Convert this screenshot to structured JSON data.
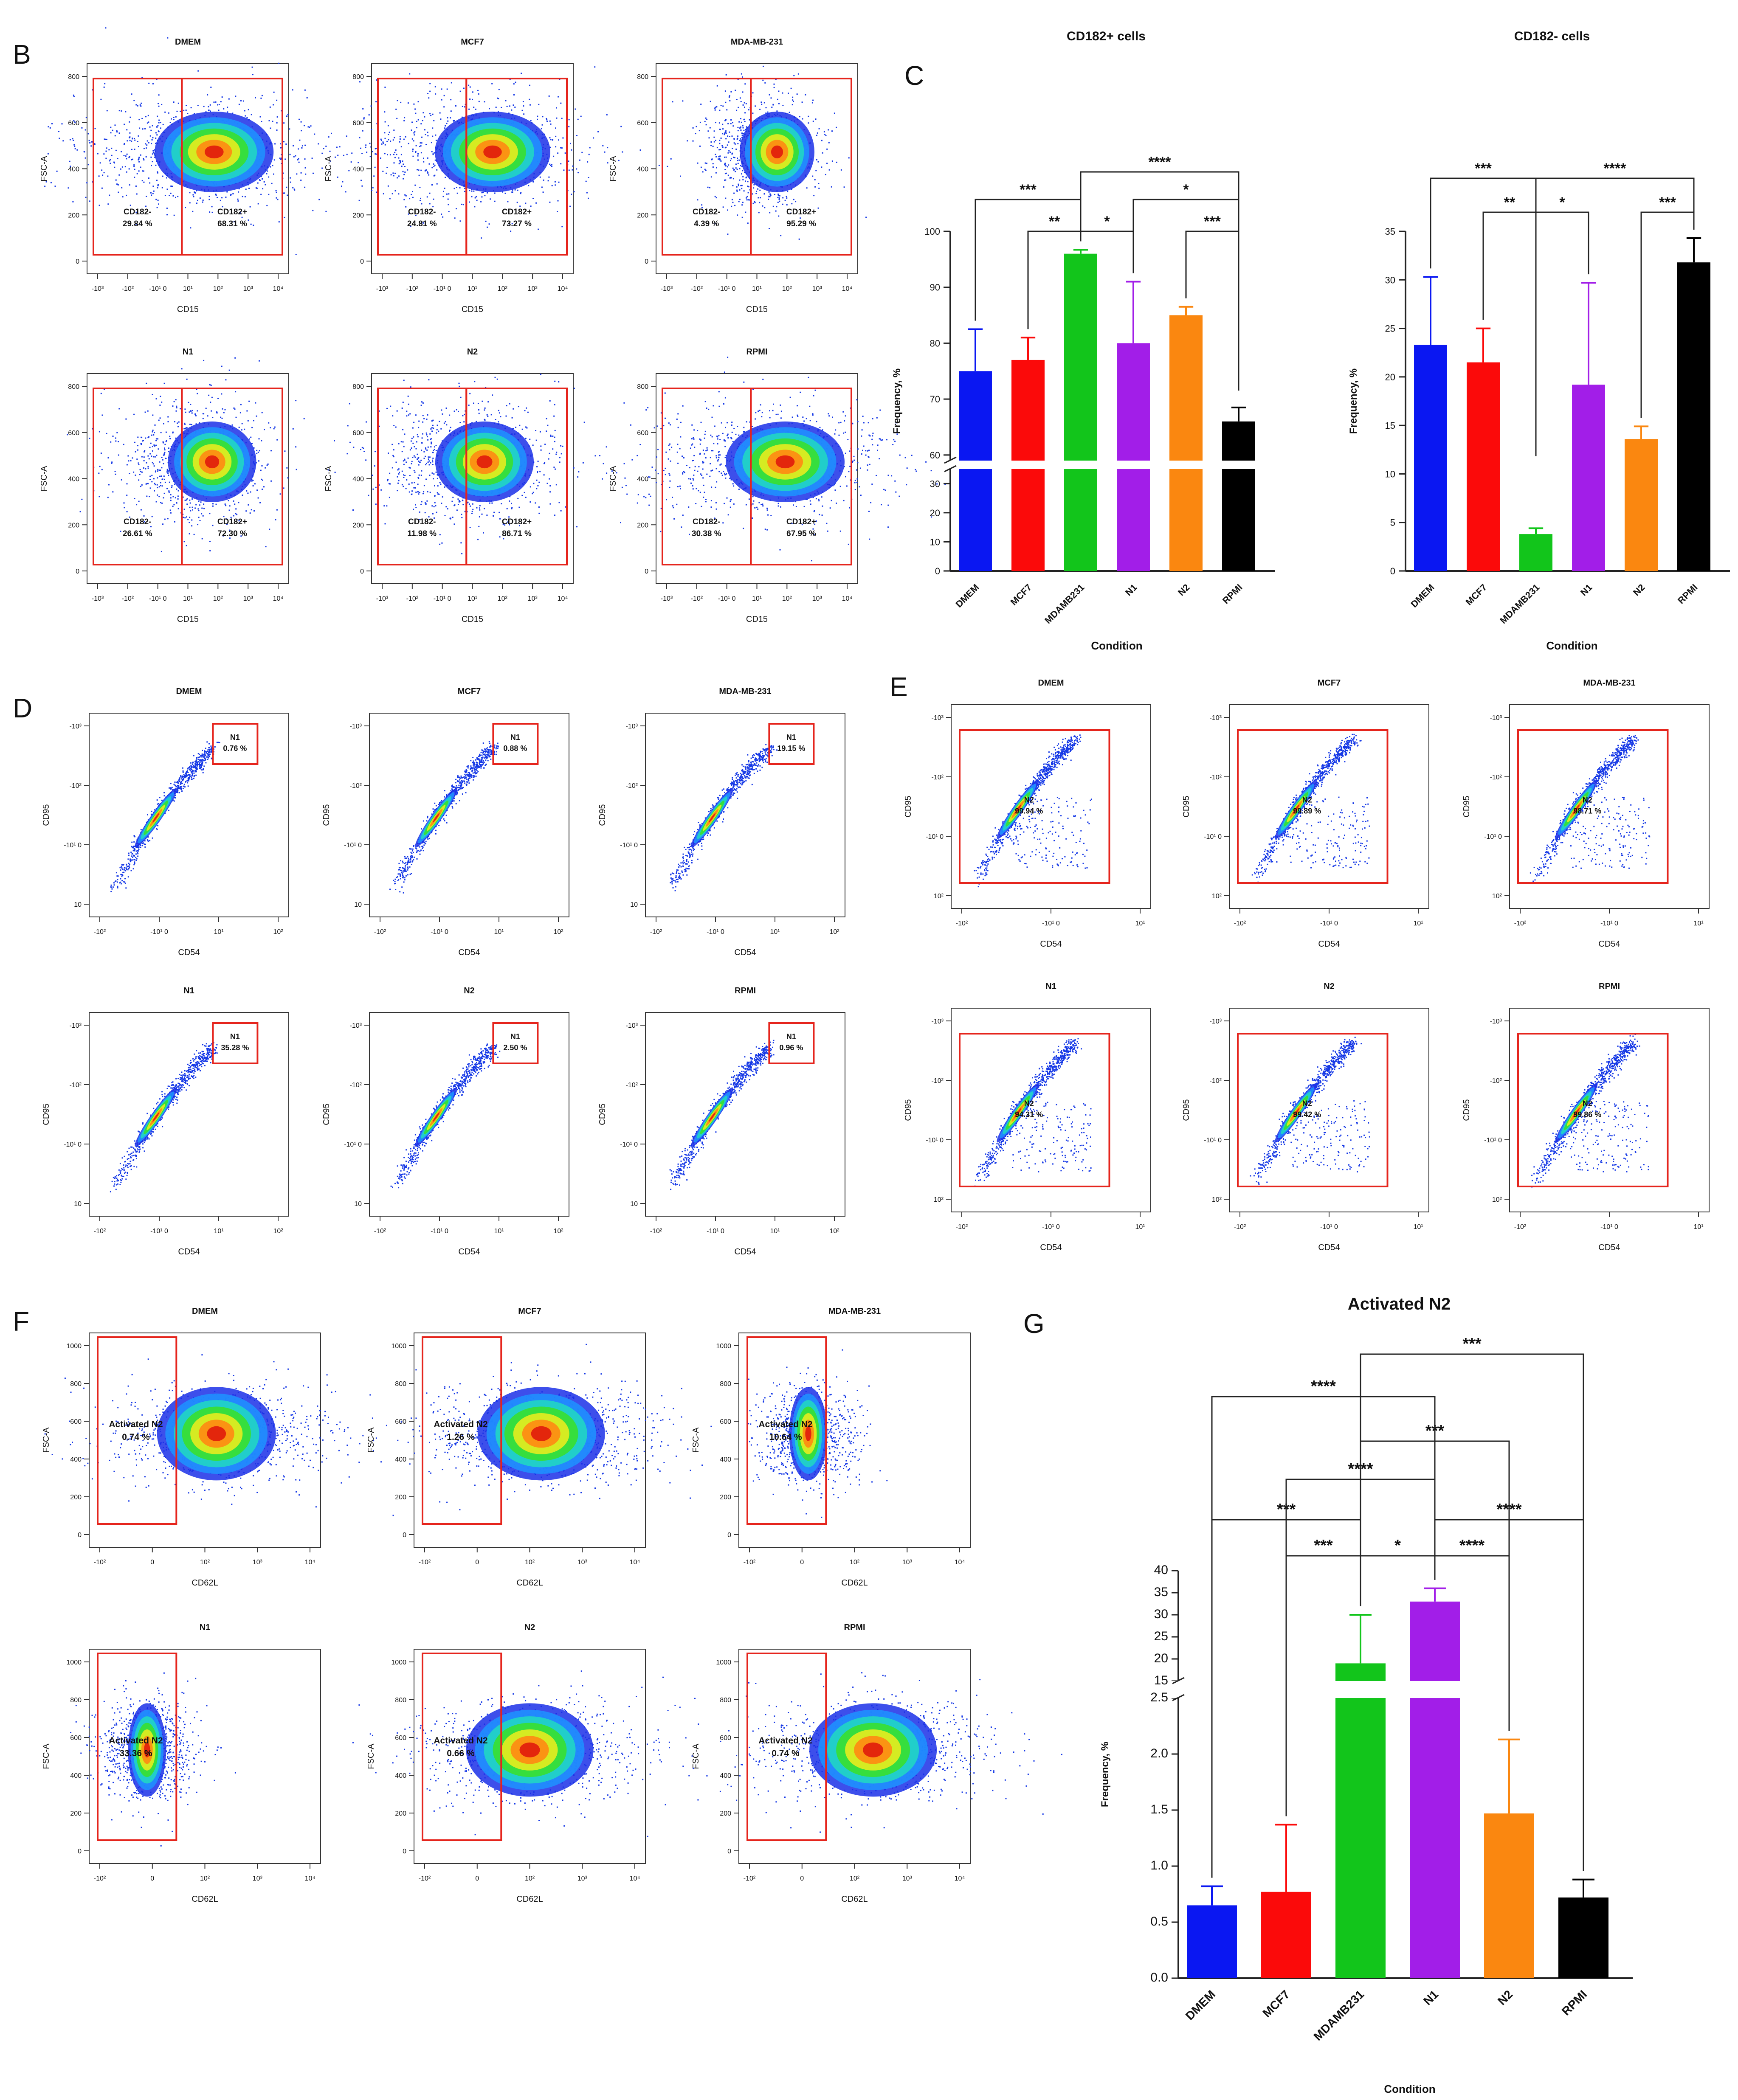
{
  "chart_data": [
    {
      "type": "scatter",
      "panel_letter": "B",
      "description_x": "CD15",
      "description_y": "FSC-A",
      "x_ticks": [
        "-10^3",
        "-10^2",
        "-10^1 0",
        "10^1",
        "10^2",
        "10^3",
        "10^4"
      ],
      "y_ticks": [
        "0",
        "200",
        "400",
        "600",
        "800"
      ],
      "plots": [
        {
          "title": "DMEM",
          "gates": [
            {
              "name": "CD182-",
              "value": "29.84 %"
            },
            {
              "name": "CD182+",
              "value": "68.31 %"
            }
          ]
        },
        {
          "title": "MCF7",
          "gates": [
            {
              "name": "CD182-",
              "value": "24.81 %"
            },
            {
              "name": "CD182+",
              "value": "73.27 %"
            }
          ]
        },
        {
          "title": "MDA-MB-231",
          "gates": [
            {
              "name": "CD182-",
              "value": "4.39 %"
            },
            {
              "name": "CD182+",
              "value": "95.29 %"
            }
          ]
        },
        {
          "title": "N1",
          "gates": [
            {
              "name": "CD182-",
              "value": "26.61 %"
            },
            {
              "name": "CD182+",
              "value": "72.30 %"
            }
          ]
        },
        {
          "title": "N2",
          "gates": [
            {
              "name": "CD182-",
              "value": "11.98 %"
            },
            {
              "name": "CD182+",
              "value": "86.71 %"
            }
          ]
        },
        {
          "title": "RPMI",
          "gates": [
            {
              "name": "CD182-",
              "value": "30.38 %"
            },
            {
              "name": "CD182+",
              "value": "67.95 %"
            }
          ]
        }
      ]
    },
    {
      "type": "bar",
      "panel_letter": "C",
      "title": "CD182+ cells",
      "xlabel": "Condition",
      "ylabel": "Frequency, %",
      "categories": [
        "DMEM",
        "MCF7",
        "MDAMB231",
        "N1",
        "N2",
        "RPMI"
      ],
      "values": [
        75,
        77,
        96,
        80,
        85,
        66
      ],
      "errors": [
        7.5,
        4,
        0.7,
        11,
        1.5,
        2.5
      ],
      "y_lower_ticks": [
        "0",
        "10",
        "20",
        "30"
      ],
      "y_upper_ticks": [
        "60",
        "70",
        "80",
        "90",
        "100"
      ],
      "ylim_lower": [
        0,
        35
      ],
      "ylim_upper": [
        59,
        100
      ],
      "significance": [
        {
          "from": "DMEM",
          "to": "MDAMB231",
          "label": "***"
        },
        {
          "from": "MCF7",
          "to": "MDAMB231",
          "label": "**"
        },
        {
          "from": "MDAMB231",
          "to": "N1",
          "label": "*"
        },
        {
          "from": "MDAMB231",
          "to": "RPMI",
          "label": "****"
        },
        {
          "from": "N1",
          "to": "RPMI",
          "label": "*"
        },
        {
          "from": "N2",
          "to": "RPMI",
          "label": "***"
        }
      ]
    },
    {
      "type": "bar",
      "panel_letter": "",
      "title": "CD182- cells",
      "xlabel": "Condition",
      "ylabel": "Frequency, %",
      "categories": [
        "DMEM",
        "MCF7",
        "MDAMB231",
        "N1",
        "N2",
        "RPMI"
      ],
      "values": [
        23.3,
        21.5,
        3.8,
        19.2,
        13.6,
        31.8
      ],
      "errors": [
        7,
        3.5,
        0.6,
        10.5,
        1.3,
        2.5
      ],
      "y_ticks": [
        "0",
        "5",
        "10",
        "15",
        "20",
        "25",
        "30",
        "35"
      ],
      "ylim": [
        0,
        35
      ],
      "significance": [
        {
          "from": "DMEM",
          "to": "MDAMB231",
          "label": "***"
        },
        {
          "from": "MCF7",
          "to": "MDAMB231",
          "label": "**"
        },
        {
          "from": "MDAMB231",
          "to": "N1",
          "label": "*"
        },
        {
          "from": "MDAMB231",
          "to": "RPMI",
          "label": "****"
        },
        {
          "from": "N2",
          "to": "RPMI",
          "label": "***"
        }
      ]
    },
    {
      "type": "scatter",
      "panel_letter": "D",
      "description_x": "CD54",
      "description_y": "CD95",
      "x_ticks": [
        "-10^2",
        "-10^1 0",
        "10^1",
        "10^2"
      ],
      "y_ticks": [
        "10",
        "-10^1 0",
        "-10^2",
        "-10^3"
      ],
      "plots": [
        {
          "title": "DMEM",
          "gates": [
            {
              "name": "N1",
              "value": "0.76 %"
            }
          ]
        },
        {
          "title": "MCF7",
          "gates": [
            {
              "name": "N1",
              "value": "0.88 %"
            }
          ]
        },
        {
          "title": "MDA-MB-231",
          "gates": [
            {
              "name": "N1",
              "value": "19.15 %"
            }
          ]
        },
        {
          "title": "N1",
          "gates": [
            {
              "name": "N1",
              "value": "35.28 %"
            }
          ]
        },
        {
          "title": "N2",
          "gates": [
            {
              "name": "N1",
              "value": "2.50 %"
            }
          ]
        },
        {
          "title": "RPMI",
          "gates": [
            {
              "name": "N1",
              "value": "0.96 %"
            }
          ]
        }
      ]
    },
    {
      "type": "scatter",
      "panel_letter": "E",
      "description_x": "CD54",
      "description_y": "CD95",
      "x_ticks": [
        "-10^2",
        "-10^1 0",
        "10^1"
      ],
      "y_ticks": [
        "10^2",
        "-10^1 0",
        "-10^2",
        "-10^3"
      ],
      "plots": [
        {
          "title": "DMEM",
          "gates": [
            {
              "name": "N2",
              "value": "99.94 %"
            }
          ]
        },
        {
          "title": "MCF7",
          "gates": [
            {
              "name": "N2",
              "value": "99.89 %"
            }
          ]
        },
        {
          "title": "MDA-MB-231",
          "gates": [
            {
              "name": "N2",
              "value": "98.71 %"
            }
          ]
        },
        {
          "title": "N1",
          "gates": [
            {
              "name": "N2",
              "value": "94.31 %"
            }
          ]
        },
        {
          "title": "N2",
          "gates": [
            {
              "name": "N2",
              "value": "99.42 %"
            }
          ]
        },
        {
          "title": "RPMI",
          "gates": [
            {
              "name": "N2",
              "value": "99.86 %"
            }
          ]
        }
      ]
    },
    {
      "type": "scatter",
      "panel_letter": "F",
      "description_x": "CD62L",
      "description_y": "FSC-A",
      "x_ticks": [
        "-10^2",
        "0",
        "10^2",
        "10^3",
        "10^4"
      ],
      "y_ticks": [
        "0",
        "200",
        "400",
        "600",
        "800",
        "1000"
      ],
      "plots": [
        {
          "title": "DMEM",
          "gates": [
            {
              "name": "Activated N2",
              "value": "0.74 %"
            }
          ]
        },
        {
          "title": "MCF7",
          "gates": [
            {
              "name": "Activated N2",
              "value": "1.26 %"
            }
          ]
        },
        {
          "title": "MDA-MB-231",
          "gates": [
            {
              "name": "Activated N2",
              "value": "10.64 %"
            }
          ]
        },
        {
          "title": "N1",
          "gates": [
            {
              "name": "Activated N2",
              "value": "33.36 %"
            }
          ]
        },
        {
          "title": "N2",
          "gates": [
            {
              "name": "Activated N2",
              "value": "0.66 %"
            }
          ]
        },
        {
          "title": "RPMI",
          "gates": [
            {
              "name": "Activated N2",
              "value": "0.74 %"
            }
          ]
        }
      ]
    },
    {
      "type": "bar",
      "panel_letter": "G",
      "title": "Activated N2",
      "xlabel": "Condition",
      "ylabel": "Frequency, %",
      "categories": [
        "DMEM",
        "MCF7",
        "MDAMB231",
        "N1",
        "N2",
        "RPMI"
      ],
      "values": [
        0.65,
        0.77,
        19,
        33,
        1.47,
        0.72
      ],
      "errors": [
        0.17,
        0.6,
        11,
        3,
        0.66,
        0.16
      ],
      "y_lower_ticks": [
        "0.0",
        "0.5",
        "1.0",
        "1.5",
        "2.0",
        "2.5"
      ],
      "y_upper_ticks": [
        "15",
        "20",
        "25",
        "30",
        "35",
        "40"
      ],
      "ylim_lower": [
        0,
        2.5
      ],
      "ylim_upper": [
        15,
        40
      ],
      "significance": [
        {
          "from": "MCF7",
          "to": "MDAMB231",
          "label": "***"
        },
        {
          "from": "MDAMB231",
          "to": "N1",
          "label": "*"
        },
        {
          "from": "N1",
          "to": "N2",
          "label": "****"
        },
        {
          "from": "DMEM",
          "to": "MDAMB231",
          "label": "***"
        },
        {
          "from": "N1",
          "to": "RPMI",
          "label": "****"
        },
        {
          "from": "MCF7",
          "to": "N1",
          "label": "****"
        },
        {
          "from": "MDAMB231",
          "to": "N2",
          "label": "***"
        },
        {
          "from": "DMEM",
          "to": "N1",
          "label": "****"
        },
        {
          "from": "MDAMB231",
          "to": "RPMI",
          "label": "***"
        }
      ]
    }
  ],
  "colors": {
    "bars": [
      "#0a17f2",
      "#fb0a0a",
      "#12c51b",
      "#a21ee8",
      "#fa8710",
      "#000000"
    ],
    "gate": "#e5241c",
    "axis": "#222222"
  }
}
